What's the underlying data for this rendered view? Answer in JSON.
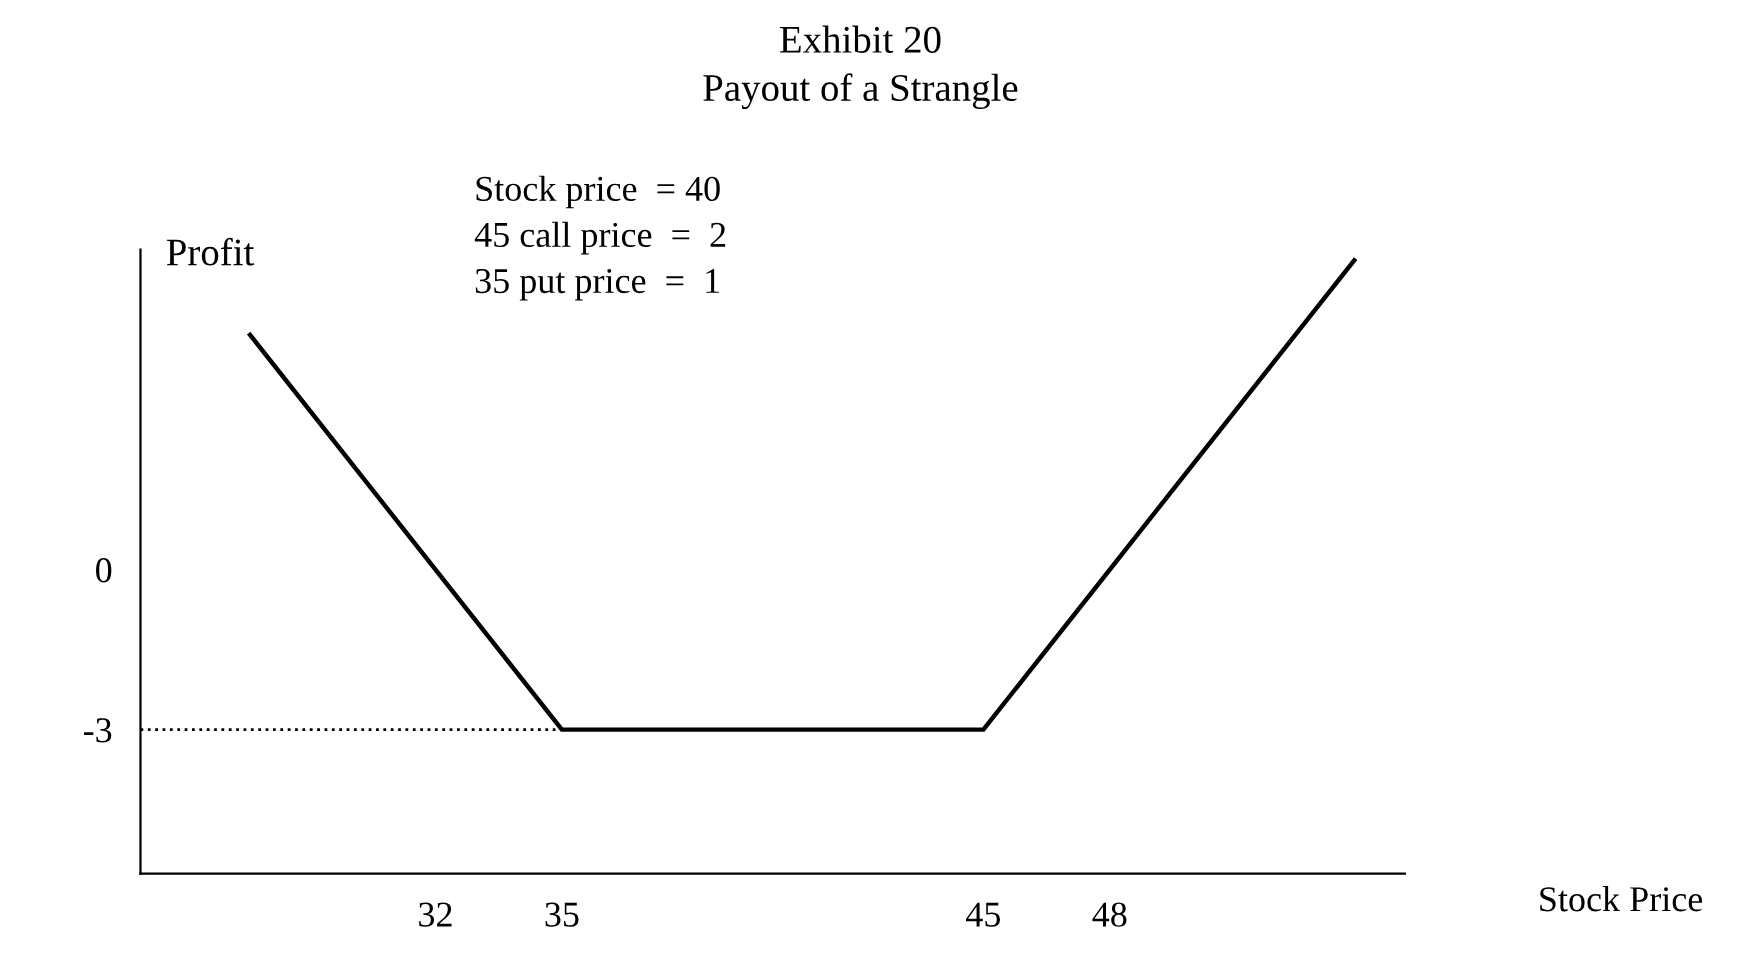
{
  "chart_data": {
    "type": "line",
    "title": "Exhibit 20",
    "subtitle": "Payout of a Strangle",
    "xlabel": "Stock Price",
    "ylabel": "Profit",
    "annotations": [
      "Stock price  = 40",
      "45 call price  =  2",
      "35 put price  =  1"
    ],
    "series": [
      {
        "color": "#000000",
        "x": [
          27.6,
          35,
          45,
          53.8
        ],
        "values": [
          4.4,
          -3,
          -3,
          5.8
        ],
        "line_style": "solid"
      },
      {
        "color": "#000000",
        "x": [
          25,
          35
        ],
        "values": [
          -3,
          -3
        ],
        "line_style": "dotted"
      }
    ],
    "xlim": [
      25,
      55
    ],
    "ylim": [
      -5.7,
      6.0
    ],
    "xticks": [
      32,
      35,
      45,
      48
    ],
    "yticks": [
      0,
      -3
    ],
    "grid": false,
    "legend": false,
    "marker": "none"
  }
}
